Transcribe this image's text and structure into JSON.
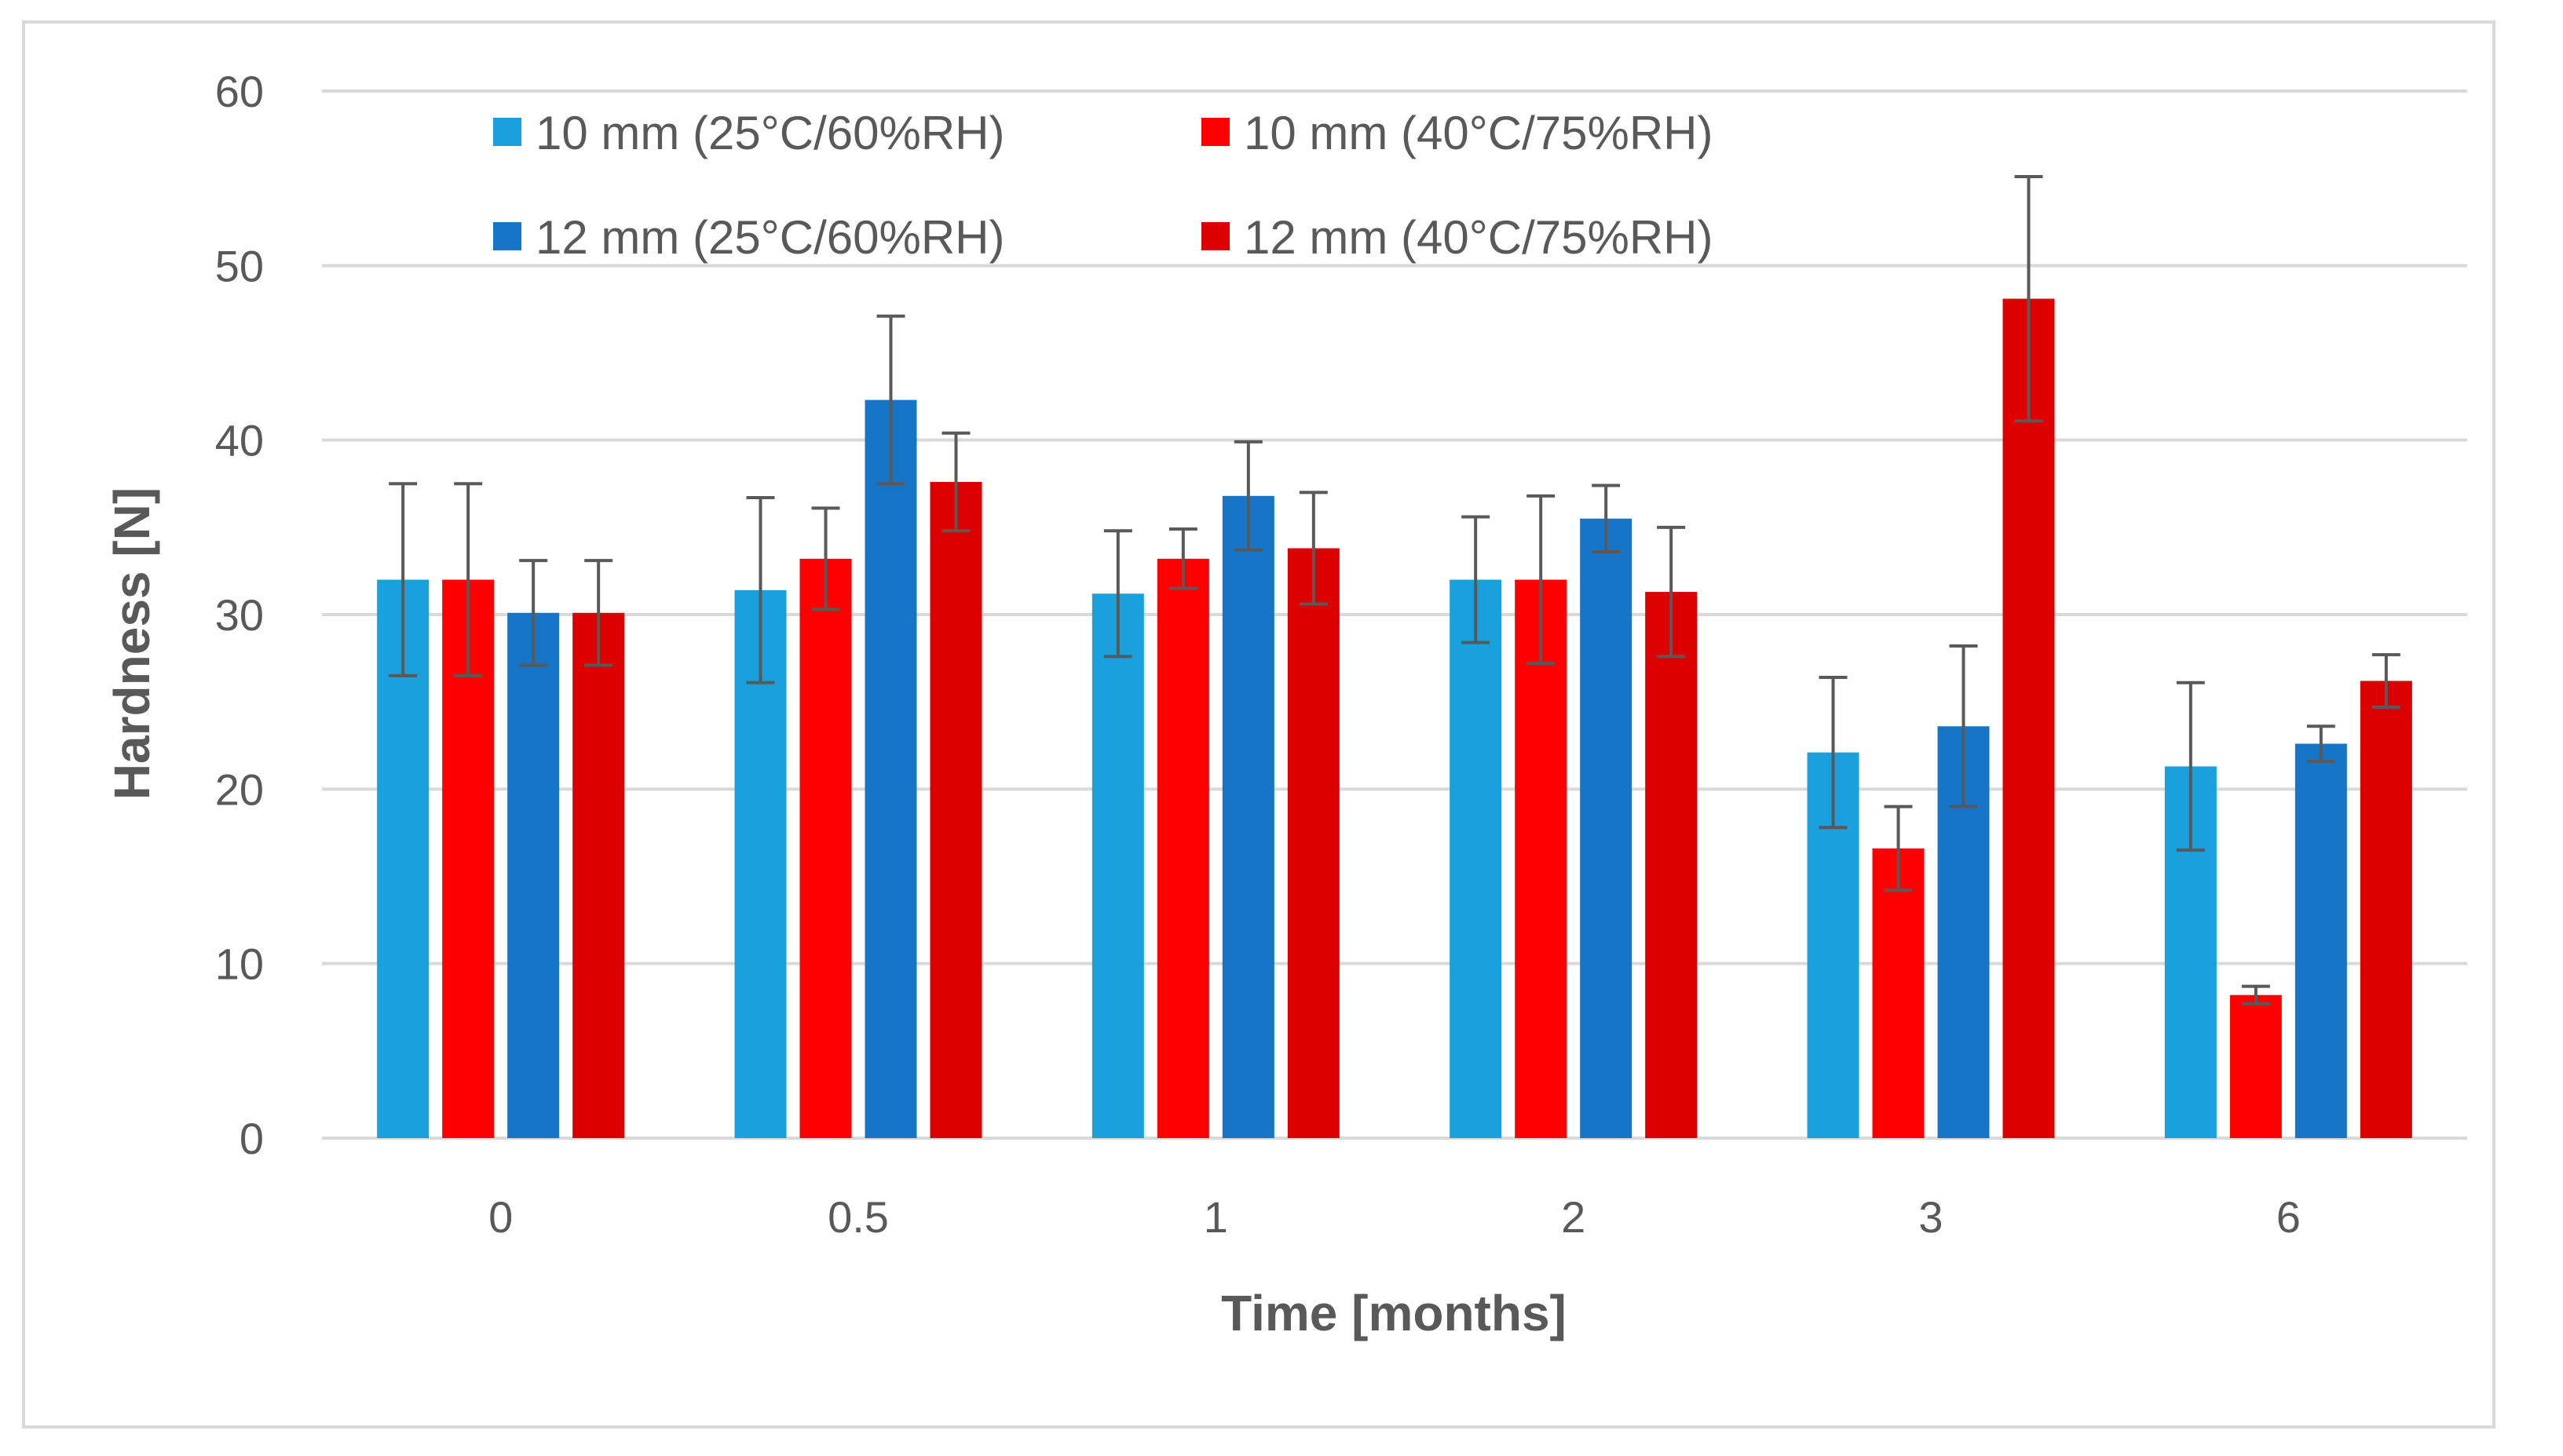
{
  "chart_data": {
    "type": "bar",
    "xlabel": "Time [months]",
    "ylabel": "Hardness [N]",
    "ylim": [
      0,
      60
    ],
    "yticks": [
      "0",
      "10",
      "20",
      "30",
      "40",
      "50",
      "60"
    ],
    "grid": true,
    "legend_position": "top",
    "categories": [
      "0",
      "0.5",
      "1",
      "2",
      "3",
      "6"
    ],
    "series": [
      {
        "name": "10 mm (25°C/60%RH)",
        "color": "#1aa0dc",
        "values": [
          32.0,
          31.4,
          31.2,
          32.0,
          22.1,
          21.3
        ],
        "errors": [
          5.5,
          5.3,
          3.6,
          3.6,
          4.3,
          4.8
        ]
      },
      {
        "name": "10 mm (40°C/75%RH)",
        "color": "#ff0000",
        "values": [
          32.0,
          33.2,
          33.2,
          32.0,
          16.6,
          8.2
        ],
        "errors": [
          5.5,
          2.9,
          1.7,
          4.8,
          2.4,
          0.5
        ]
      },
      {
        "name": "12 mm (25°C/60%RH)",
        "color": "#1775c8",
        "values": [
          30.1,
          42.3,
          36.8,
          35.5,
          23.6,
          22.6
        ],
        "errors": [
          3.0,
          4.8,
          3.1,
          1.9,
          4.6,
          1.0
        ]
      },
      {
        "name": "12 mm (40°C/75%RH)",
        "color": "#dc0000",
        "values": [
          30.1,
          37.6,
          33.8,
          31.3,
          48.1,
          26.2
        ],
        "errors": [
          3.0,
          2.8,
          3.2,
          3.7,
          7.0,
          1.5
        ]
      }
    ]
  }
}
